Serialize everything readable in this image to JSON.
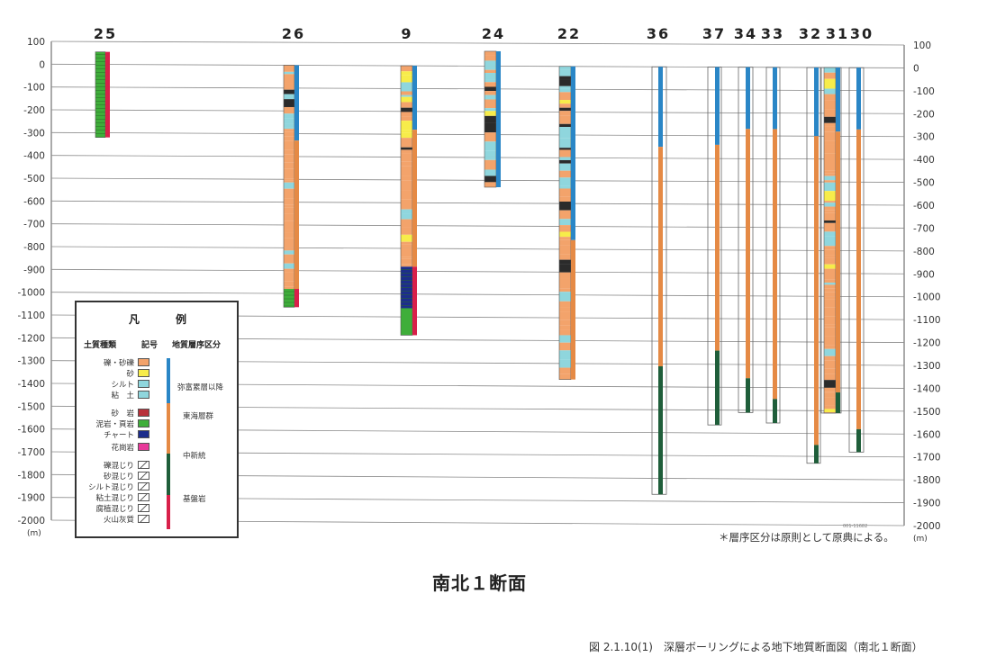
{
  "figure": {
    "section_title": "南北１断面",
    "caption": "図 2.1.10(1)　深層ボーリングによる地下地質断面図（南北１断面）",
    "note": "＊層序区分は原則として原典による。",
    "unit_left": "(m)",
    "unit_right": "(m)",
    "small_mark": "001-11682"
  },
  "axis": {
    "ticks": [
      100,
      0,
      -100,
      -200,
      -300,
      -400,
      -500,
      -600,
      -700,
      -800,
      -900,
      -1000,
      -1100,
      -1200,
      -1300,
      -1400,
      -1500,
      -1600,
      -1700,
      -1800,
      -1900,
      -2000
    ],
    "ylim": [
      -2000,
      100
    ]
  },
  "boreholes": [
    {
      "id": "25",
      "top": 55,
      "bottom": -320,
      "strata": [
        {
          "from": 55,
          "to": -320,
          "unit": "basement"
        }
      ],
      "pattern": "mudstone"
    },
    {
      "id": "26",
      "top": 0,
      "bottom": -1060,
      "strata": [
        {
          "from": 0,
          "to": -330,
          "unit": "yafuku"
        },
        {
          "from": -330,
          "to": -980,
          "unit": "tokai"
        },
        {
          "from": -980,
          "to": -1060,
          "unit": "basement"
        }
      ],
      "pattern": "mixed"
    },
    {
      "id": "9",
      "top": 0,
      "bottom": -1180,
      "strata": [
        {
          "from": 0,
          "to": -280,
          "unit": "yafuku"
        },
        {
          "from": -280,
          "to": -880,
          "unit": "tokai"
        },
        {
          "from": -880,
          "to": -1180,
          "unit": "basement"
        }
      ],
      "pattern": "mixed"
    },
    {
      "id": "24",
      "top": 65,
      "bottom": -530,
      "strata": [
        {
          "from": 65,
          "to": -530,
          "unit": "yafuku"
        }
      ],
      "pattern": "mixed"
    },
    {
      "id": "22",
      "top": 0,
      "bottom": -1370,
      "strata": [
        {
          "from": 0,
          "to": -760,
          "unit": "yafuku"
        },
        {
          "from": -760,
          "to": -1370,
          "unit": "tokai"
        }
      ],
      "pattern": "mixed"
    },
    {
      "id": "36",
      "top": 0,
      "bottom": -1870,
      "strata": [
        {
          "from": 0,
          "to": -350,
          "unit": "yafuku"
        },
        {
          "from": -350,
          "to": -1310,
          "unit": "tokai"
        },
        {
          "from": -1310,
          "to": -1870,
          "unit": "miocene"
        }
      ],
      "pattern": "none"
    },
    {
      "id": "37",
      "top": 0,
      "bottom": -1565,
      "strata": [
        {
          "from": 0,
          "to": -340,
          "unit": "yafuku"
        },
        {
          "from": -340,
          "to": -1240,
          "unit": "tokai"
        },
        {
          "from": -1240,
          "to": -1565,
          "unit": "miocene"
        }
      ],
      "pattern": "none"
    },
    {
      "id": "34",
      "top": 0,
      "bottom": -1510,
      "strata": [
        {
          "from": 0,
          "to": -270,
          "unit": "yafuku"
        },
        {
          "from": -270,
          "to": -1360,
          "unit": "tokai"
        },
        {
          "from": -1360,
          "to": -1510,
          "unit": "miocene"
        }
      ],
      "pattern": "none"
    },
    {
      "id": "33",
      "top": 0,
      "bottom": -1555,
      "strata": [
        {
          "from": 0,
          "to": -270,
          "unit": "yafuku"
        },
        {
          "from": -270,
          "to": -1450,
          "unit": "tokai"
        },
        {
          "from": -1450,
          "to": -1555,
          "unit": "miocene"
        }
      ],
      "pattern": "none"
    },
    {
      "id": "32",
      "top": 0,
      "bottom": -1730,
      "strata": [
        {
          "from": 0,
          "to": -300,
          "unit": "yafuku"
        },
        {
          "from": -300,
          "to": -1650,
          "unit": "tokai"
        },
        {
          "from": -1650,
          "to": -1730,
          "unit": "miocene"
        }
      ],
      "pattern": "none"
    },
    {
      "id": "31",
      "top": 0,
      "bottom": -1510,
      "strata": [
        {
          "from": 0,
          "to": -280,
          "unit": "yafuku"
        },
        {
          "from": -280,
          "to": -1420,
          "unit": "tokai"
        },
        {
          "from": -1420,
          "to": -1510,
          "unit": "miocene"
        }
      ],
      "pattern": "mixed"
    },
    {
      "id": "30",
      "top": 0,
      "bottom": -1680,
      "strata": [
        {
          "from": 0,
          "to": -270,
          "unit": "yafuku"
        },
        {
          "from": -270,
          "to": -1580,
          "unit": "tokai"
        },
        {
          "from": -1580,
          "to": -1680,
          "unit": "miocene"
        }
      ],
      "pattern": "none"
    }
  ],
  "units": {
    "yafuku": {
      "color": "#2a86c6"
    },
    "tokai": {
      "color": "#e58a45"
    },
    "miocene": {
      "color": "#1f5e3a"
    },
    "basement": {
      "color": "#d8204a"
    }
  },
  "legend": {
    "title": "凡　例",
    "col1": "土質種類",
    "col2": "記号",
    "col3": "地質層序区分",
    "soils": [
      {
        "label": "礫・砂礫",
        "color": "#f3a36b"
      },
      {
        "label": "砂",
        "color": "#f7ec4a"
      },
      {
        "label": "シルト",
        "color": "#8fd6dd"
      },
      {
        "label": "粘　土",
        "color": "#8fd6dd"
      },
      {
        "label": "砂　岩",
        "color": "#b8303a"
      },
      {
        "label": "泥岩・頁岩",
        "color": "#3fae3a"
      },
      {
        "label": "チャート",
        "color": "#1d2d8c"
      },
      {
        "label": "花崗岩",
        "color": "#e83a9a"
      },
      {
        "label": "礫混じり",
        "color": "#ffffff"
      },
      {
        "label": "砂混じり",
        "color": "#ffffff"
      },
      {
        "label": "シルト混じり",
        "color": "#ffffff"
      },
      {
        "label": "粘土混じり",
        "color": "#ffffff"
      },
      {
        "label": "腐植混じり",
        "color": "#ffffff"
      },
      {
        "label": "火山灰質",
        "color": "#ffffff"
      }
    ],
    "units": [
      {
        "label": "弥富累層以降",
        "color": "#2a86c6"
      },
      {
        "label": "東海層群",
        "color": "#e58a45"
      },
      {
        "label": "中新統",
        "color": "#1f5e3a"
      },
      {
        "label": "基盤岩",
        "color": "#d8204a"
      }
    ]
  }
}
